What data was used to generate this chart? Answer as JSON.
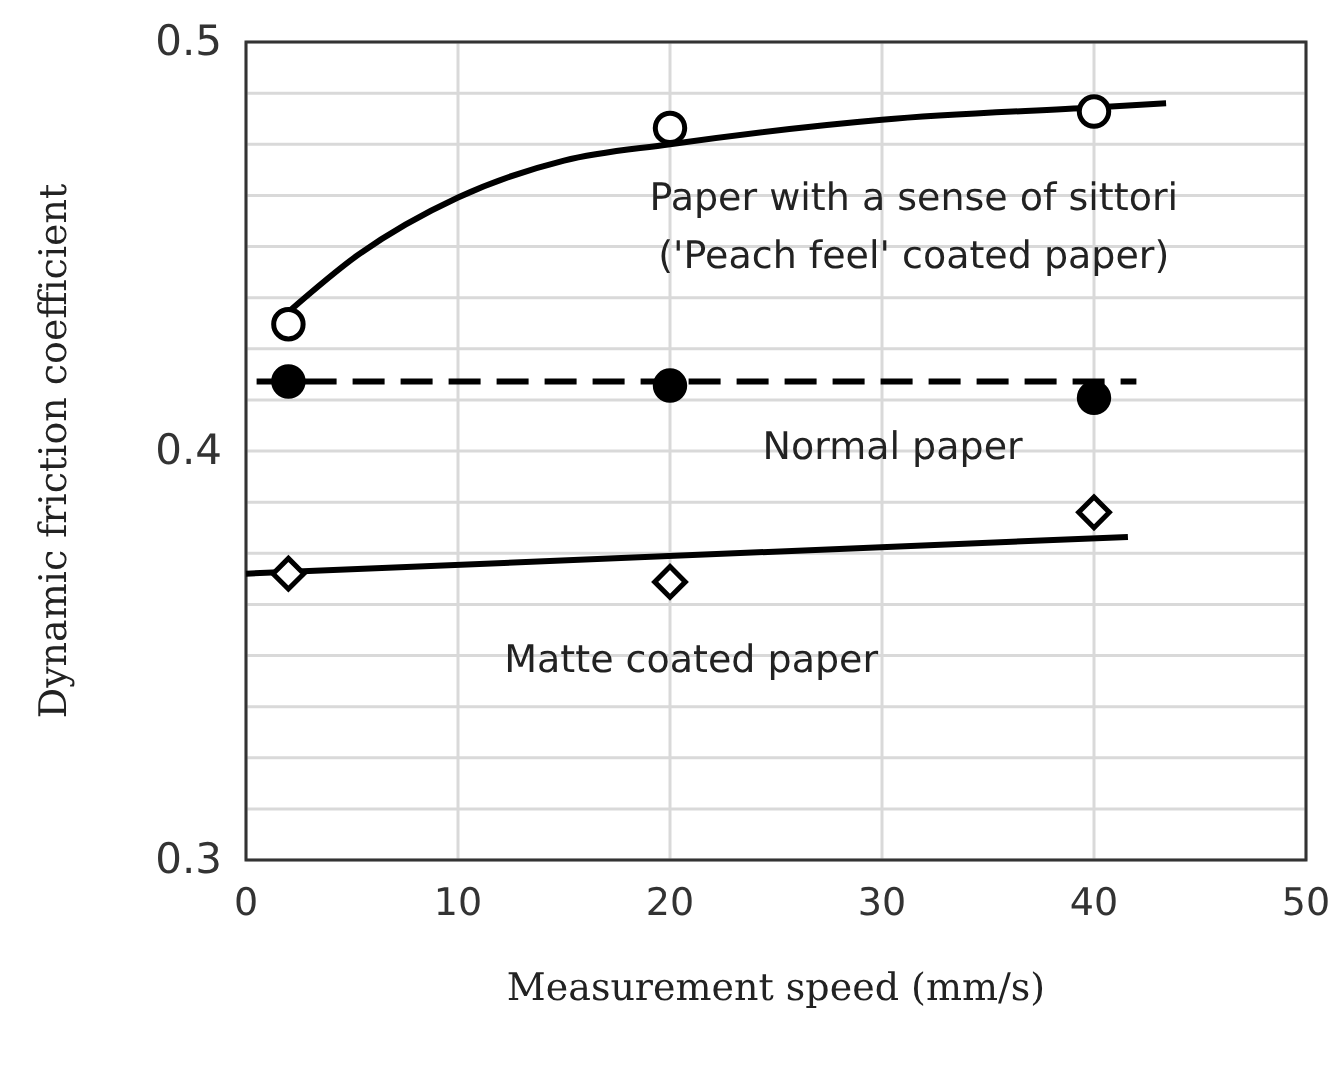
{
  "chart_data": {
    "type": "scatter",
    "xlabel": "Measurement speed  (mm/s)",
    "ylabel": "Dynamic friction coefficient",
    "xlim": [
      0,
      50
    ],
    "xticks": [
      0,
      10,
      20,
      30,
      40,
      50
    ],
    "ylim": [
      0.3,
      0.5
    ],
    "yticks": [
      {
        "value": 0.3,
        "label": "0.3"
      },
      {
        "value": 0.3125,
        "label": null
      },
      {
        "value": 0.325,
        "label": null
      },
      {
        "value": 0.3375,
        "label": null
      },
      {
        "value": 0.35,
        "label": null
      },
      {
        "value": 0.3625,
        "label": null
      },
      {
        "value": 0.375,
        "label": null
      },
      {
        "value": 0.3875,
        "label": null
      },
      {
        "value": 0.4,
        "label": "0.4"
      },
      {
        "value": 0.4125,
        "label": null
      },
      {
        "value": 0.425,
        "label": null
      },
      {
        "value": 0.4375,
        "label": null
      },
      {
        "value": 0.45,
        "label": null
      },
      {
        "value": 0.4625,
        "label": null
      },
      {
        "value": 0.475,
        "label": null
      },
      {
        "value": 0.4875,
        "label": null
      },
      {
        "value": 0.5,
        "label": "0.5"
      }
    ],
    "grid": true,
    "series": [
      {
        "type": "line",
        "color": "#000000",
        "line_style": "solid",
        "marker": "none",
        "x": [
          2,
          5.3,
          10,
          15,
          20,
          30,
          40,
          43.4
        ],
        "values": [
          0.434,
          0.448,
          0.462,
          0.471,
          0.475,
          0.481,
          0.484,
          0.485
        ]
      },
      {
        "type": "line",
        "color": "#000000",
        "line_style": "dashed",
        "marker": "none",
        "x": [
          0.5,
          42
        ],
        "values": [
          0.417,
          0.417
        ]
      },
      {
        "type": "line",
        "color": "#000000",
        "line_style": "solid",
        "marker": "none",
        "x": [
          0,
          41.6
        ],
        "values": [
          0.37,
          0.379
        ]
      },
      {
        "name": "Paper with a sense of sittori\n('Peach feel' coated paper)",
        "color": "#000000",
        "marker": "circle",
        "x": [
          2,
          20,
          40
        ],
        "values": [
          0.431,
          0.479,
          0.483
        ]
      },
      {
        "name": "Normal paper",
        "color": "#000000",
        "marker": "circle",
        "x": [
          2,
          20,
          40
        ],
        "values": [
          0.417,
          0.416,
          0.413
        ]
      },
      {
        "name": "Matte coated paper",
        "color": "#000000",
        "marker": "diamond",
        "x": [
          2,
          20,
          40
        ],
        "values": [
          0.37,
          0.368,
          0.385
        ]
      }
    ]
  }
}
